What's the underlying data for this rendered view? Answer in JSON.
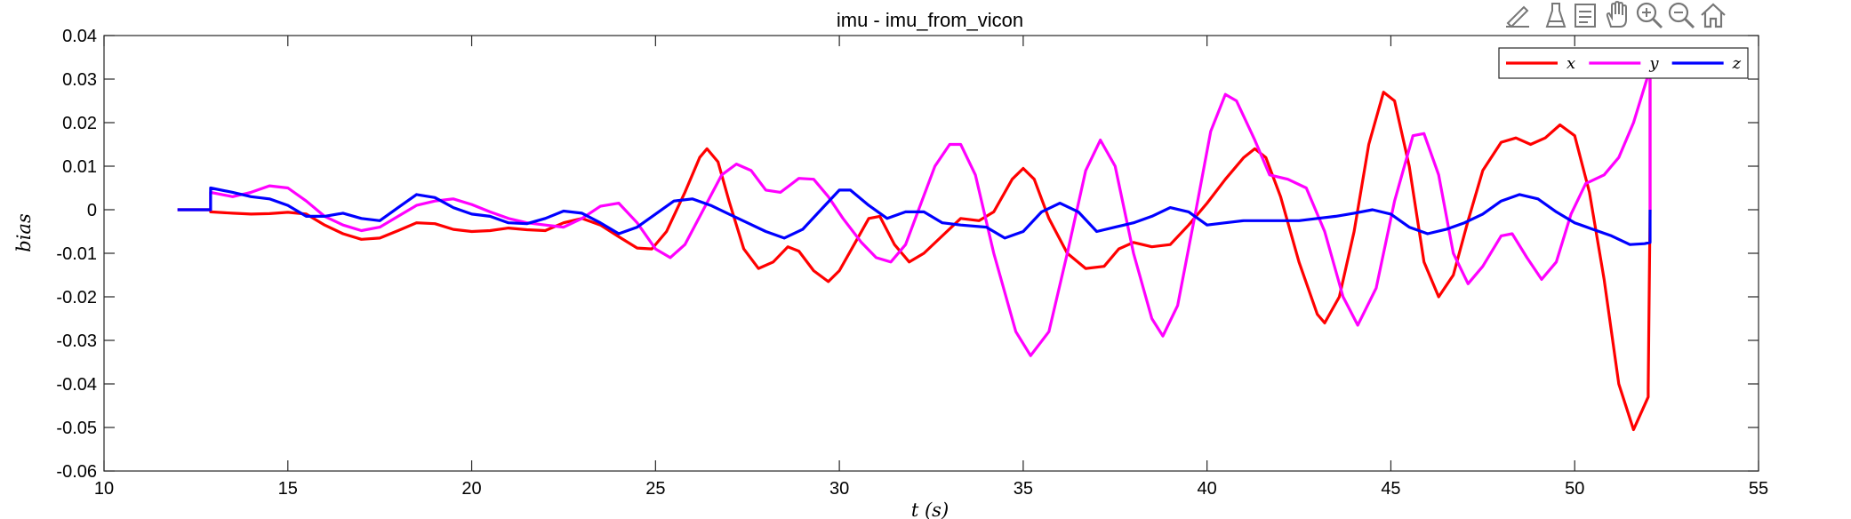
{
  "toolbar": {
    "icons": [
      "edit-brush-icon",
      "data-cursor-icon",
      "legend-icon",
      "pan-hand-icon",
      "zoom-in-icon",
      "zoom-out-icon",
      "home-icon"
    ]
  },
  "chart_data": {
    "type": "line",
    "title": "imu - imu_from_vicon",
    "xlabel": "t (s)",
    "ylabel": "bias",
    "xlim": [
      10,
      55
    ],
    "ylim": [
      -0.06,
      0.04
    ],
    "xticks": [
      10,
      15,
      20,
      25,
      30,
      35,
      40,
      45,
      50,
      55
    ],
    "yticks": [
      -0.06,
      -0.05,
      -0.04,
      -0.03,
      -0.02,
      -0.01,
      0,
      0.01,
      0.02,
      0.03,
      0.04
    ],
    "ytick_labels": [
      "-0.06",
      "-0.05",
      "-0.04",
      "-0.03",
      "-0.02",
      "-0.01",
      "0",
      "0.01",
      "0.02",
      "0.03",
      "0.04"
    ],
    "grid": false,
    "legend_position": "top-right",
    "series": [
      {
        "name": "x",
        "color": "#ff0000",
        "points": [
          [
            12,
            0
          ],
          [
            12.9,
            0
          ],
          [
            12.9,
            -0.0005
          ],
          [
            13.5,
            -0.0008
          ],
          [
            14,
            -0.001
          ],
          [
            14.5,
            -0.0009
          ],
          [
            15,
            -0.0006
          ],
          [
            15.5,
            -0.001
          ],
          [
            16,
            -0.0035
          ],
          [
            16.5,
            -0.0055
          ],
          [
            17,
            -0.0068
          ],
          [
            17.5,
            -0.0065
          ],
          [
            18,
            -0.0048
          ],
          [
            18.5,
            -0.003
          ],
          [
            19,
            -0.0032
          ],
          [
            19.5,
            -0.0045
          ],
          [
            20,
            -0.005
          ],
          [
            20.5,
            -0.0048
          ],
          [
            21,
            -0.0042
          ],
          [
            21.5,
            -0.0046
          ],
          [
            22,
            -0.0048
          ],
          [
            22.5,
            -0.003
          ],
          [
            23,
            -0.002
          ],
          [
            23.5,
            -0.0035
          ],
          [
            24,
            -0.0062
          ],
          [
            24.5,
            -0.0088
          ],
          [
            24.9,
            -0.009
          ],
          [
            25.3,
            -0.005
          ],
          [
            25.8,
            0.004
          ],
          [
            26.2,
            0.012
          ],
          [
            26.4,
            0.014
          ],
          [
            26.7,
            0.011
          ],
          [
            27,
            0.002
          ],
          [
            27.4,
            -0.009
          ],
          [
            27.8,
            -0.0135
          ],
          [
            28.2,
            -0.012
          ],
          [
            28.6,
            -0.0085
          ],
          [
            28.9,
            -0.0095
          ],
          [
            29.3,
            -0.014
          ],
          [
            29.7,
            -0.0165
          ],
          [
            30,
            -0.014
          ],
          [
            30.4,
            -0.008
          ],
          [
            30.8,
            -0.002
          ],
          [
            31.1,
            -0.0015
          ],
          [
            31.5,
            -0.008
          ],
          [
            31.9,
            -0.012
          ],
          [
            32.3,
            -0.01
          ],
          [
            32.8,
            -0.006
          ],
          [
            33.3,
            -0.002
          ],
          [
            33.8,
            -0.0025
          ],
          [
            34.2,
            -0.0005
          ],
          [
            34.7,
            0.007
          ],
          [
            35,
            0.0095
          ],
          [
            35.3,
            0.007
          ],
          [
            35.7,
            -0.002
          ],
          [
            36.2,
            -0.01
          ],
          [
            36.7,
            -0.0135
          ],
          [
            37.2,
            -0.013
          ],
          [
            37.6,
            -0.009
          ],
          [
            38,
            -0.0075
          ],
          [
            38.5,
            -0.0085
          ],
          [
            39,
            -0.008
          ],
          [
            39.5,
            -0.0035
          ],
          [
            40,
            0.0015
          ],
          [
            40.5,
            0.007
          ],
          [
            41,
            0.012
          ],
          [
            41.3,
            0.014
          ],
          [
            41.6,
            0.012
          ],
          [
            42,
            0.003
          ],
          [
            42.5,
            -0.012
          ],
          [
            43,
            -0.024
          ],
          [
            43.2,
            -0.026
          ],
          [
            43.6,
            -0.02
          ],
          [
            44,
            -0.005
          ],
          [
            44.4,
            0.015
          ],
          [
            44.8,
            0.027
          ],
          [
            45.1,
            0.025
          ],
          [
            45.5,
            0.01
          ],
          [
            45.9,
            -0.012
          ],
          [
            46.3,
            -0.02
          ],
          [
            46.7,
            -0.015
          ],
          [
            47.1,
            -0.0025
          ],
          [
            47.5,
            0.009
          ],
          [
            48,
            0.0155
          ],
          [
            48.4,
            0.0165
          ],
          [
            48.8,
            0.015
          ],
          [
            49.2,
            0.0165
          ],
          [
            49.6,
            0.0195
          ],
          [
            50,
            0.017
          ],
          [
            50.4,
            0.004
          ],
          [
            50.8,
            -0.016
          ],
          [
            51.2,
            -0.04
          ],
          [
            51.6,
            -0.0505
          ],
          [
            52,
            -0.043
          ],
          [
            52,
            -0.041
          ],
          [
            52.05,
            0
          ],
          [
            52.05,
            0.03
          ]
        ]
      },
      {
        "name": "y",
        "color": "#ff00ff",
        "points": [
          [
            12,
            0
          ],
          [
            12.9,
            0
          ],
          [
            12.9,
            0.004
          ],
          [
            13.5,
            0.003
          ],
          [
            14,
            0.004
          ],
          [
            14.5,
            0.0055
          ],
          [
            15,
            0.005
          ],
          [
            15.5,
            0.002
          ],
          [
            16,
            -0.0015
          ],
          [
            16.5,
            -0.0035
          ],
          [
            17,
            -0.0048
          ],
          [
            17.5,
            -0.004
          ],
          [
            18,
            -0.0015
          ],
          [
            18.5,
            0.001
          ],
          [
            19,
            0.002
          ],
          [
            19.5,
            0.0025
          ],
          [
            20,
            0.0012
          ],
          [
            20.5,
            -0.0005
          ],
          [
            21,
            -0.002
          ],
          [
            21.5,
            -0.003
          ],
          [
            22,
            -0.0035
          ],
          [
            22.5,
            -0.004
          ],
          [
            23,
            -0.002
          ],
          [
            23.5,
            0.0008
          ],
          [
            24,
            0.0015
          ],
          [
            24.5,
            -0.003
          ],
          [
            25,
            -0.009
          ],
          [
            25.4,
            -0.011
          ],
          [
            25.8,
            -0.008
          ],
          [
            26.3,
            0
          ],
          [
            26.8,
            0.008
          ],
          [
            27.2,
            0.0105
          ],
          [
            27.6,
            0.009
          ],
          [
            28,
            0.0045
          ],
          [
            28.4,
            0.004
          ],
          [
            28.9,
            0.0072
          ],
          [
            29.3,
            0.007
          ],
          [
            29.7,
            0.003
          ],
          [
            30.1,
            -0.002
          ],
          [
            30.6,
            -0.0075
          ],
          [
            31,
            -0.011
          ],
          [
            31.4,
            -0.012
          ],
          [
            31.8,
            -0.008
          ],
          [
            32.2,
            0.001
          ],
          [
            32.6,
            0.01
          ],
          [
            33,
            0.015
          ],
          [
            33.3,
            0.015
          ],
          [
            33.7,
            0.008
          ],
          [
            34.2,
            -0.01
          ],
          [
            34.8,
            -0.028
          ],
          [
            35.2,
            -0.0335
          ],
          [
            35.7,
            -0.028
          ],
          [
            36.2,
            -0.01
          ],
          [
            36.7,
            0.009
          ],
          [
            37.1,
            0.016
          ],
          [
            37.5,
            0.01
          ],
          [
            38,
            -0.01
          ],
          [
            38.5,
            -0.025
          ],
          [
            38.8,
            -0.029
          ],
          [
            39.2,
            -0.022
          ],
          [
            39.7,
            0
          ],
          [
            40.1,
            0.018
          ],
          [
            40.5,
            0.0265
          ],
          [
            40.8,
            0.025
          ],
          [
            41.3,
            0.016
          ],
          [
            41.7,
            0.008
          ],
          [
            42.2,
            0.007
          ],
          [
            42.7,
            0.005
          ],
          [
            43.2,
            -0.005
          ],
          [
            43.7,
            -0.02
          ],
          [
            44.1,
            -0.0265
          ],
          [
            44.6,
            -0.018
          ],
          [
            45.1,
            0.002
          ],
          [
            45.6,
            0.017
          ],
          [
            45.9,
            0.0175
          ],
          [
            46.3,
            0.008
          ],
          [
            46.7,
            -0.01
          ],
          [
            47.1,
            -0.017
          ],
          [
            47.5,
            -0.013
          ],
          [
            48,
            -0.006
          ],
          [
            48.3,
            -0.0055
          ],
          [
            48.7,
            -0.011
          ],
          [
            49.1,
            -0.016
          ],
          [
            49.5,
            -0.012
          ],
          [
            49.9,
            -0.001
          ],
          [
            50.3,
            0.006
          ],
          [
            50.8,
            0.008
          ],
          [
            51.2,
            0.012
          ],
          [
            51.6,
            0.02
          ],
          [
            52,
            0.031
          ],
          [
            52.05,
            0.031
          ],
          [
            52.05,
            0
          ]
        ]
      },
      {
        "name": "z",
        "color": "#0000ff",
        "points": [
          [
            12,
            0
          ],
          [
            12.9,
            0
          ],
          [
            12.9,
            0.005
          ],
          [
            13.5,
            0.004
          ],
          [
            14,
            0.003
          ],
          [
            14.5,
            0.0025
          ],
          [
            15,
            0.001
          ],
          [
            15.5,
            -0.0015
          ],
          [
            16,
            -0.0015
          ],
          [
            16.5,
            -0.0008
          ],
          [
            17,
            -0.002
          ],
          [
            17.5,
            -0.0025
          ],
          [
            18,
            0.0005
          ],
          [
            18.5,
            0.0035
          ],
          [
            19,
            0.0028
          ],
          [
            19.5,
            0.0005
          ],
          [
            20,
            -0.001
          ],
          [
            20.5,
            -0.0015
          ],
          [
            21,
            -0.003
          ],
          [
            21.5,
            -0.0032
          ],
          [
            22,
            -0.002
          ],
          [
            22.5,
            -0.0003
          ],
          [
            23,
            -0.0008
          ],
          [
            23.5,
            -0.003
          ],
          [
            24,
            -0.0055
          ],
          [
            24.5,
            -0.004
          ],
          [
            25,
            -0.001
          ],
          [
            25.5,
            0.002
          ],
          [
            26,
            0.0025
          ],
          [
            26.5,
            0.001
          ],
          [
            27,
            -0.001
          ],
          [
            27.5,
            -0.003
          ],
          [
            28,
            -0.005
          ],
          [
            28.5,
            -0.0065
          ],
          [
            29,
            -0.0045
          ],
          [
            29.5,
            0
          ],
          [
            30,
            0.0045
          ],
          [
            30.3,
            0.0045
          ],
          [
            30.8,
            0.001
          ],
          [
            31.3,
            -0.002
          ],
          [
            31.8,
            -0.0005
          ],
          [
            32.3,
            -0.0005
          ],
          [
            32.8,
            -0.003
          ],
          [
            33.3,
            -0.0035
          ],
          [
            34,
            -0.004
          ],
          [
            34.5,
            -0.0065
          ],
          [
            35,
            -0.005
          ],
          [
            35.5,
            -0.0005
          ],
          [
            36,
            0.0015
          ],
          [
            36.5,
            -0.0005
          ],
          [
            37,
            -0.005
          ],
          [
            37.5,
            -0.004
          ],
          [
            38,
            -0.003
          ],
          [
            38.5,
            -0.0015
          ],
          [
            39,
            0.0005
          ],
          [
            39.5,
            -0.0005
          ],
          [
            40,
            -0.0035
          ],
          [
            40.5,
            -0.003
          ],
          [
            41,
            -0.0025
          ],
          [
            41.5,
            -0.0025
          ],
          [
            42,
            -0.0025
          ],
          [
            42.5,
            -0.0025
          ],
          [
            43,
            -0.002
          ],
          [
            43.5,
            -0.0015
          ],
          [
            44,
            -0.0008
          ],
          [
            44.5,
            0
          ],
          [
            45,
            -0.001
          ],
          [
            45.5,
            -0.004
          ],
          [
            46,
            -0.0055
          ],
          [
            46.5,
            -0.0045
          ],
          [
            47,
            -0.003
          ],
          [
            47.5,
            -0.001
          ],
          [
            48,
            0.002
          ],
          [
            48.5,
            0.0035
          ],
          [
            49,
            0.0025
          ],
          [
            49.5,
            -0.0005
          ],
          [
            50,
            -0.003
          ],
          [
            50.5,
            -0.0045
          ],
          [
            51,
            -0.006
          ],
          [
            51.5,
            -0.008
          ],
          [
            51.9,
            -0.0078
          ],
          [
            52.05,
            -0.0075
          ],
          [
            52.05,
            0
          ]
        ]
      }
    ]
  }
}
